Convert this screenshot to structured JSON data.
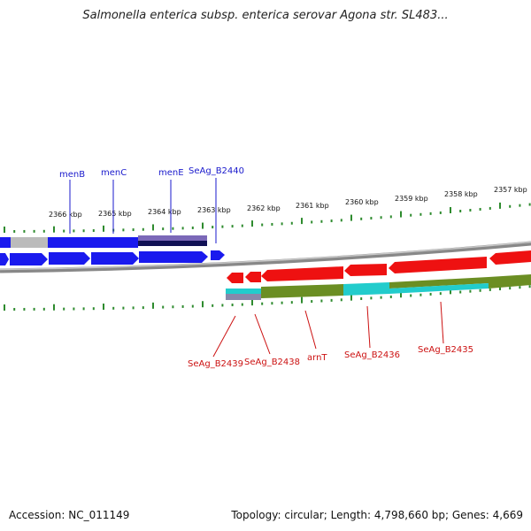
{
  "header": {
    "title": "Salmonella enterica subsp. enterica serovar Agona str. SL483..."
  },
  "footer": {
    "accession": "Accession: NC_011149",
    "topology": "Topology: circular; Length: 4,798,660 bp; Genes: 4,669"
  },
  "scale": {
    "ticks": [
      "2366 kbp",
      "2365 kbp",
      "2364 kbp",
      "2363 kbp",
      "2362 kbp",
      "2361 kbp",
      "2360 kbp",
      "2359 kbp",
      "2358 kbp",
      "2357 kbp"
    ]
  },
  "genes_forward": [
    "menB",
    "menC",
    "menE",
    "SeAg_B2440"
  ],
  "genes_reverse": [
    "SeAg_B2439",
    "SeAg_B2438",
    "arnT",
    "SeAg_B2436",
    "SeAg_B2435"
  ],
  "colors": {
    "forward": "#1a1aee",
    "reverse": "#ee1111",
    "cog_green": "#6b8e23",
    "cog_cyan": "#22cccc",
    "backbone": "#888888",
    "tick": "#2e8b2e"
  }
}
